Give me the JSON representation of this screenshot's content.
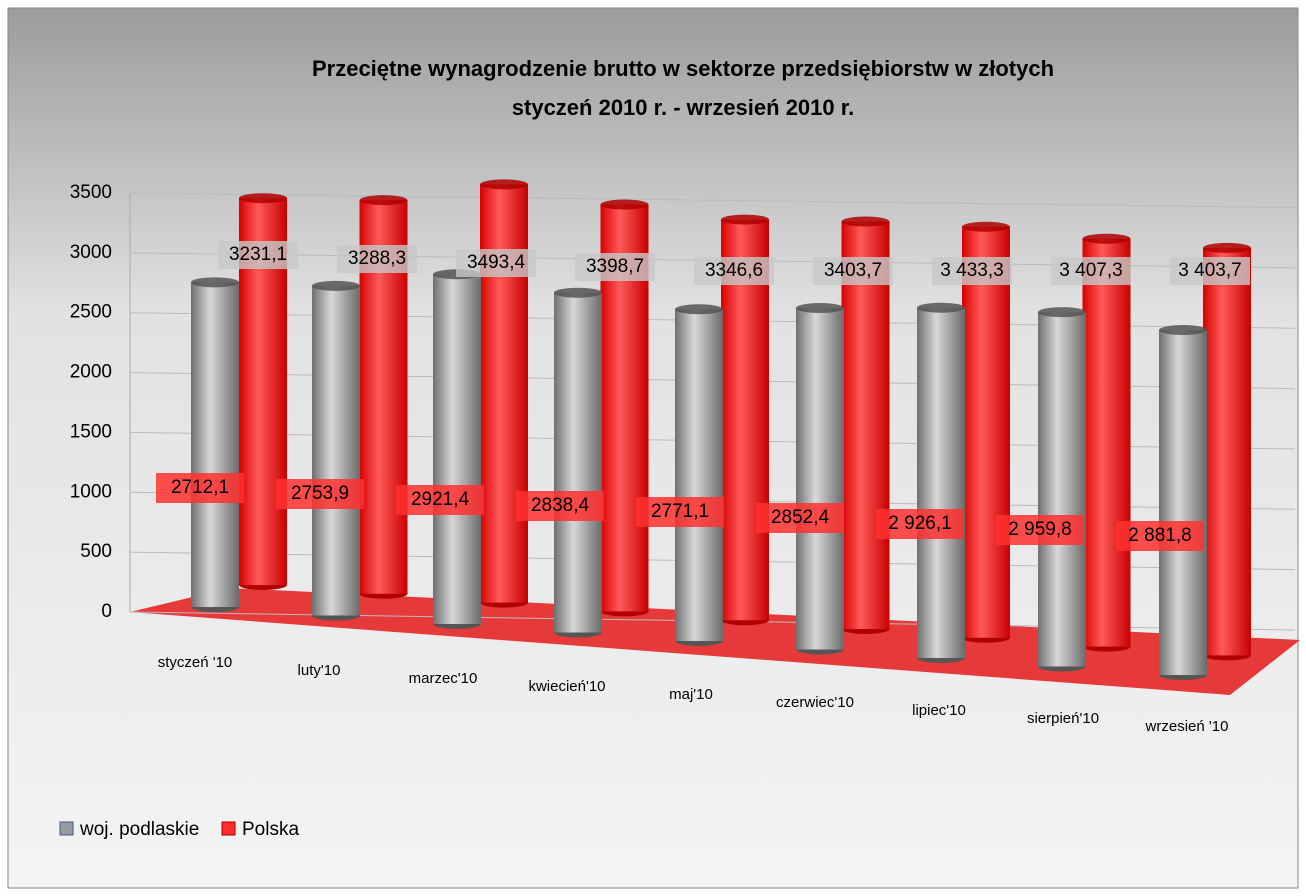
{
  "chart_data": {
    "type": "bar",
    "title": "Przeciętne wynagrodzenie brutto w sektorze przedsiębiorstw w złotych",
    "subtitle": "styczeń 2010 r.  -  wrzesień 2010 r.",
    "categories": [
      "styczeń '10",
      "luty'10",
      "marzec'10",
      "kwiecień'10",
      "maj'10",
      "czerwiec'10",
      "lipiec'10",
      "sierpień'10",
      "wrzesień '10"
    ],
    "series": [
      {
        "name": "woj. podlaskie",
        "color": "#9a9a9a",
        "values": [
          2712.1,
          2753.9,
          2921.4,
          2838.4,
          2771.1,
          2852.4,
          2926.1,
          2959.8,
          2881.8
        ],
        "value_labels": [
          "2712,1",
          "2753,9",
          "2921,4",
          "2838,4",
          "2771,1",
          "2852,4",
          "2 926,1",
          "2 959,8",
          "2 881,8"
        ]
      },
      {
        "name": "Polska",
        "color": "#ff2a2a",
        "values": [
          3231.1,
          3288.3,
          3493.4,
          3398.7,
          3346.6,
          3403.7,
          3433.3,
          3407.3,
          3403.7
        ],
        "value_labels": [
          "3231,1",
          "3288,3",
          "3493,4",
          "3398,7",
          "3346,6",
          "3403,7",
          "3 433,3",
          "3 407,3",
          "3 403,7"
        ]
      }
    ],
    "ylim": [
      0,
      3500
    ],
    "yticks": [
      0,
      500,
      1000,
      1500,
      2000,
      2500,
      3000,
      3500
    ],
    "grid": true
  }
}
